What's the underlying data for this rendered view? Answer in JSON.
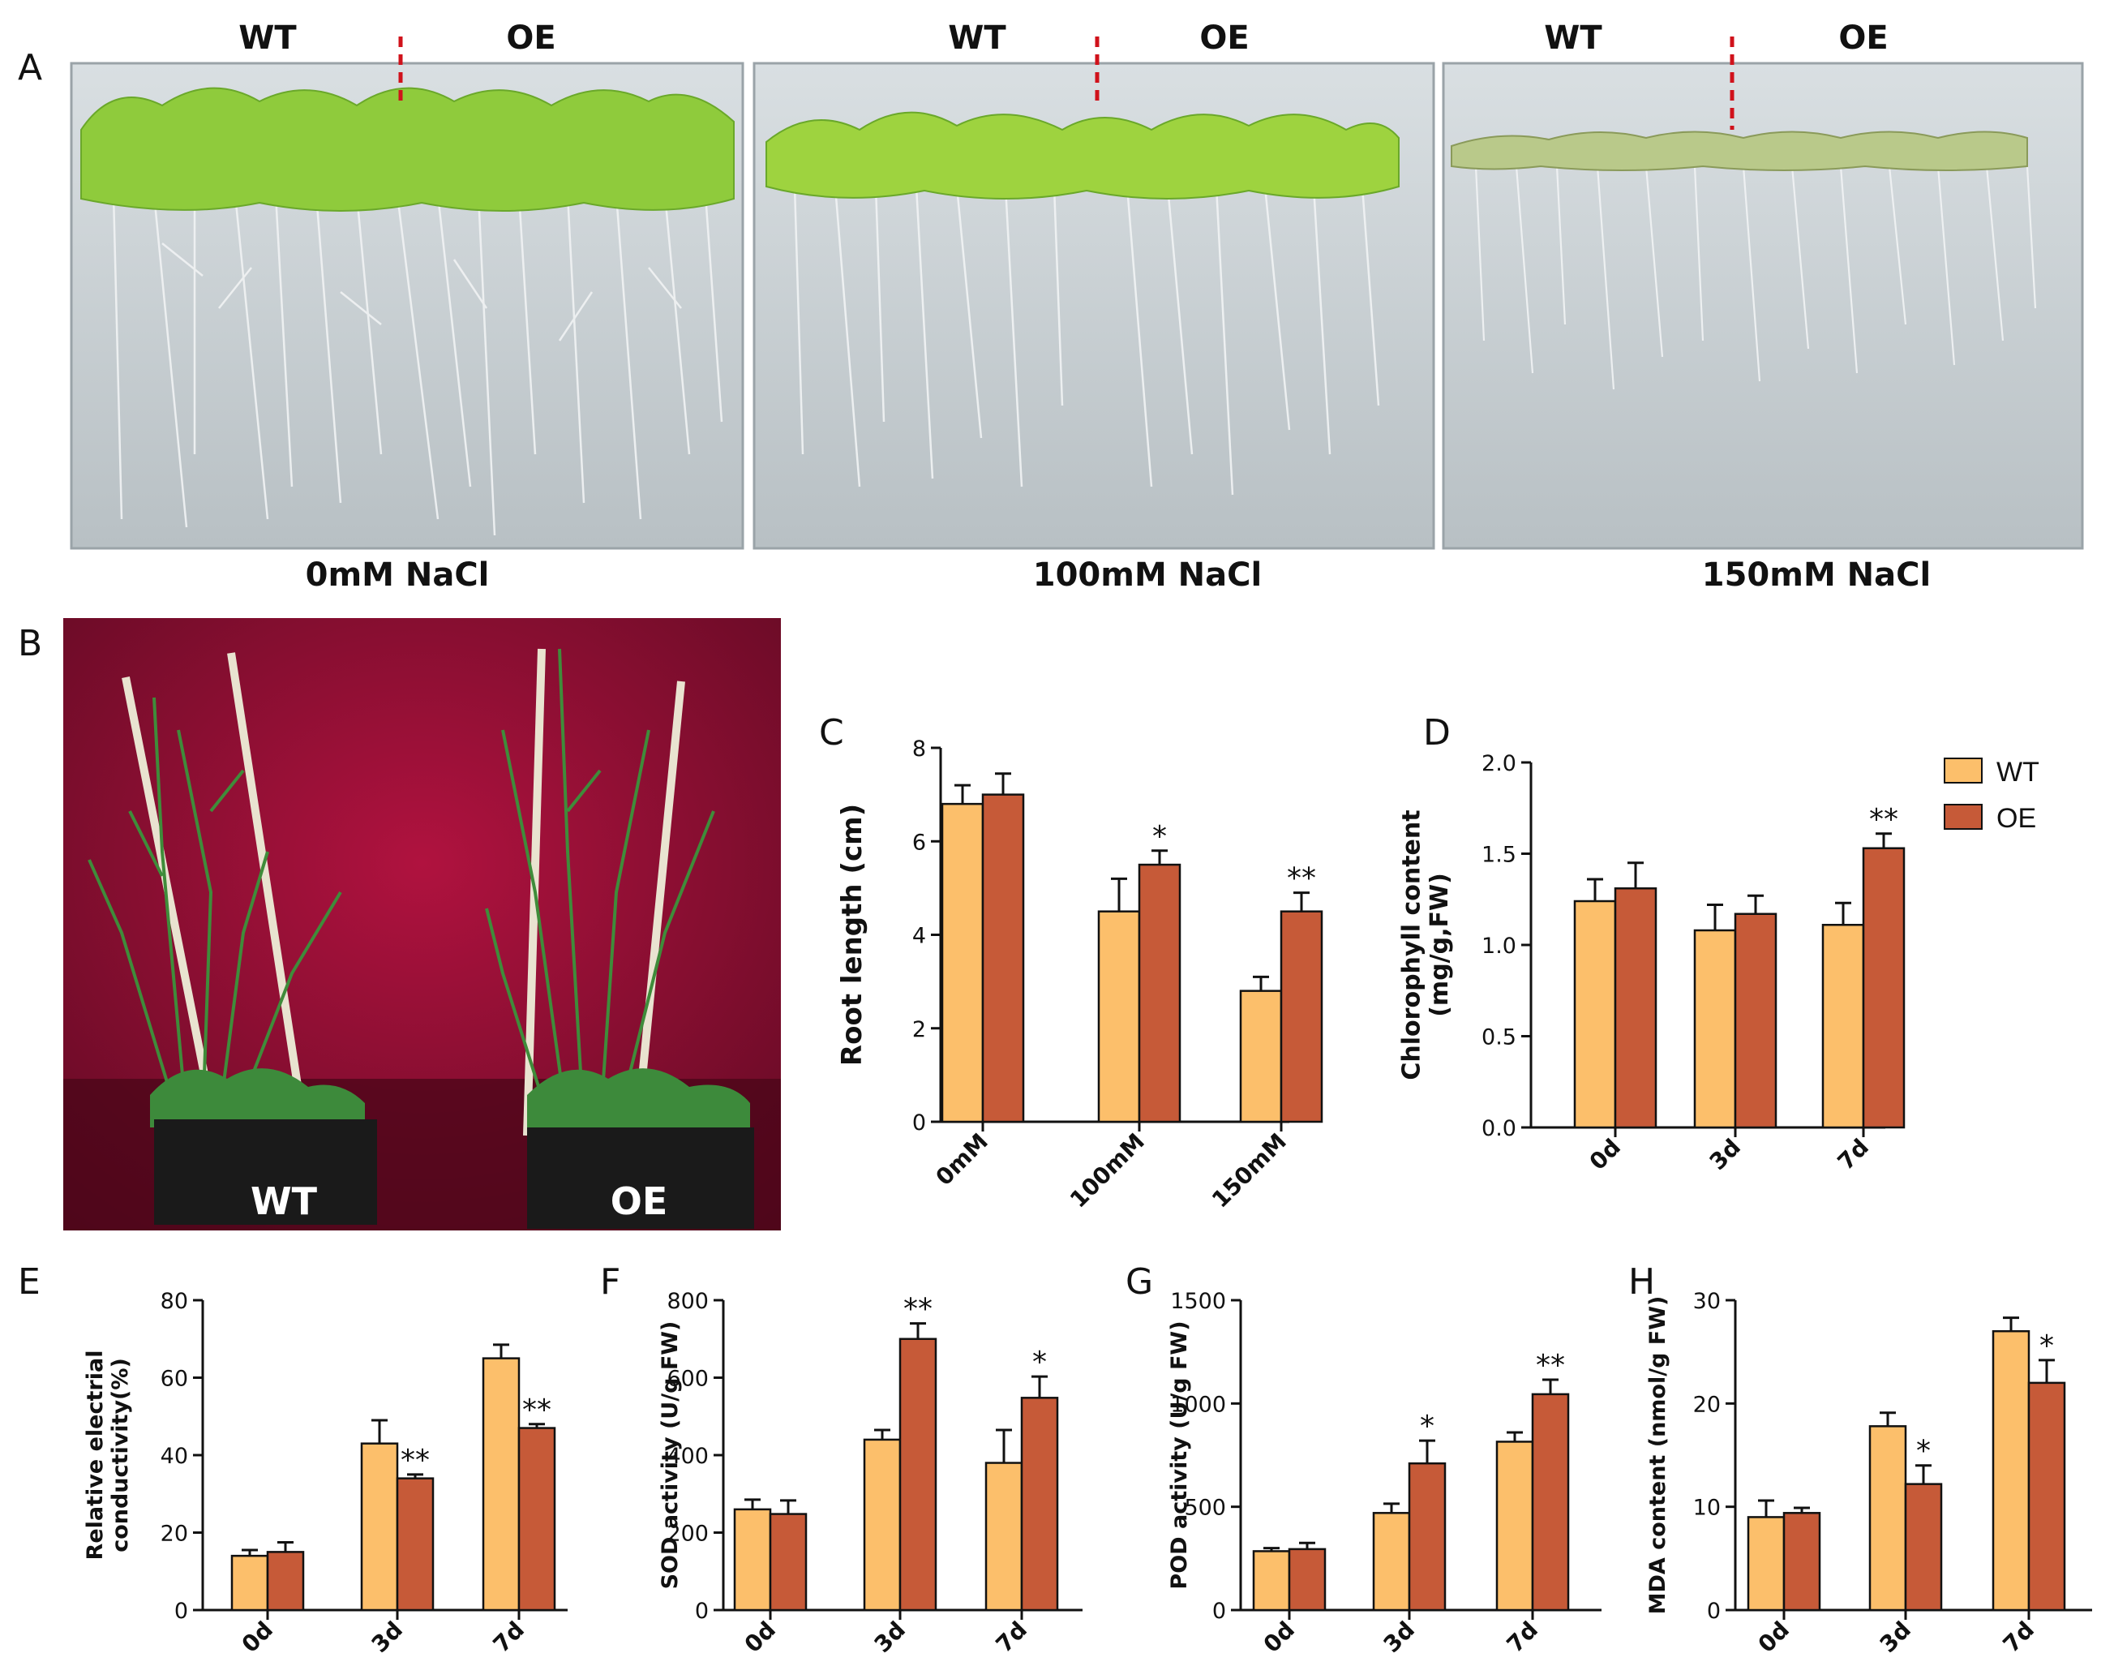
{
  "figure": {
    "panels": {
      "A": "A",
      "B": "B",
      "C": "C",
      "D": "D",
      "E": "E",
      "F": "F",
      "G": "G",
      "H": "H"
    },
    "panelA": {
      "labels_wt": "WT",
      "labels_oe": "OE",
      "conditions": [
        "0mM NaCl",
        "100mM NaCl",
        "150mM NaCl"
      ]
    },
    "panelB": {
      "wt": "WT",
      "oe": "OE"
    },
    "legend": {
      "wt": "WT",
      "oe": "OE"
    },
    "colors": {
      "wt": "#FCBF6B",
      "oe": "#C65A38",
      "backdrop": "#8A1030",
      "agar": "#C9D0D4",
      "leaf": "#8FCB3C"
    }
  },
  "chart_data": [
    {
      "id": "C",
      "type": "bar",
      "ylabel": "Root length (cm)",
      "categories": [
        "0mM",
        "100mM",
        "150mM"
      ],
      "ylim": [
        0,
        8
      ],
      "yticks": [
        0,
        2,
        4,
        6,
        8
      ],
      "series": [
        {
          "name": "WT",
          "values": [
            6.8,
            4.5,
            2.8
          ],
          "errors": [
            0.4,
            0.7,
            0.3
          ],
          "sig": [
            "",
            "",
            ""
          ]
        },
        {
          "name": "OE",
          "values": [
            7.0,
            5.5,
            4.5
          ],
          "errors": [
            0.45,
            0.3,
            0.4
          ],
          "sig": [
            "",
            "*",
            "**"
          ]
        }
      ]
    },
    {
      "id": "D",
      "type": "bar",
      "ylabel": "Chlorophyll content (mg/g,FW)",
      "categories": [
        "0d",
        "3d",
        "7d"
      ],
      "ylim": [
        0,
        2.0
      ],
      "yticks": [
        0.0,
        0.5,
        1.0,
        1.5,
        2.0
      ],
      "series": [
        {
          "name": "WT",
          "values": [
            1.24,
            1.08,
            1.11
          ],
          "errors": [
            0.12,
            0.14,
            0.12
          ],
          "sig": [
            "",
            "",
            ""
          ]
        },
        {
          "name": "OE",
          "values": [
            1.31,
            1.17,
            1.53
          ],
          "errors": [
            0.14,
            0.1,
            0.08
          ],
          "sig": [
            "",
            "",
            "**"
          ]
        }
      ]
    },
    {
      "id": "E",
      "type": "bar",
      "ylabel": "Relative electrial conductivity(%)",
      "categories": [
        "0d",
        "3d",
        "7d"
      ],
      "ylim": [
        0,
        80
      ],
      "yticks": [
        0,
        20,
        40,
        60,
        80
      ],
      "series": [
        {
          "name": "WT",
          "values": [
            14,
            43,
            65
          ],
          "errors": [
            1.5,
            6,
            3.5
          ],
          "sig": [
            "",
            "",
            ""
          ]
        },
        {
          "name": "OE",
          "values": [
            15,
            34,
            47
          ],
          "errors": [
            2.5,
            1,
            1
          ],
          "sig": [
            "",
            "**",
            "**"
          ]
        }
      ]
    },
    {
      "id": "F",
      "type": "bar",
      "ylabel": "SOD activity (U/g FW)",
      "categories": [
        "0d",
        "3d",
        "7d"
      ],
      "ylim": [
        0,
        800
      ],
      "yticks": [
        0,
        200,
        400,
        600,
        800
      ],
      "series": [
        {
          "name": "WT",
          "values": [
            260,
            440,
            380
          ],
          "errors": [
            25,
            25,
            85
          ],
          "sig": [
            "",
            "",
            ""
          ]
        },
        {
          "name": "OE",
          "values": [
            248,
            700,
            548
          ],
          "errors": [
            35,
            40,
            55
          ],
          "sig": [
            "",
            "**",
            "*"
          ]
        }
      ]
    },
    {
      "id": "G",
      "type": "bar",
      "ylabel": "POD activity (U/g FW)",
      "categories": [
        "0d",
        "3d",
        "7d"
      ],
      "ylim": [
        0,
        1500
      ],
      "yticks": [
        0,
        500,
        1000,
        1500
      ],
      "series": [
        {
          "name": "WT",
          "values": [
            285,
            470,
            815
          ],
          "errors": [
            15,
            45,
            45
          ],
          "sig": [
            "",
            "",
            ""
          ]
        },
        {
          "name": "OE",
          "values": [
            295,
            710,
            1045
          ],
          "errors": [
            30,
            110,
            70
          ],
          "sig": [
            "",
            "*",
            "**"
          ]
        }
      ]
    },
    {
      "id": "H",
      "type": "bar",
      "ylabel": "MDA content (nmol/g FW)",
      "categories": [
        "0d",
        "3d",
        "7d"
      ],
      "ylim": [
        0,
        30
      ],
      "yticks": [
        0,
        10,
        20,
        30
      ],
      "series": [
        {
          "name": "WT",
          "values": [
            9,
            17.8,
            27
          ],
          "errors": [
            1.6,
            1.3,
            1.3
          ],
          "sig": [
            "",
            "",
            ""
          ]
        },
        {
          "name": "OE",
          "values": [
            9.4,
            12.2,
            22
          ],
          "errors": [
            0.5,
            1.8,
            2.2
          ],
          "sig": [
            "",
            "*",
            "*"
          ]
        }
      ]
    }
  ]
}
